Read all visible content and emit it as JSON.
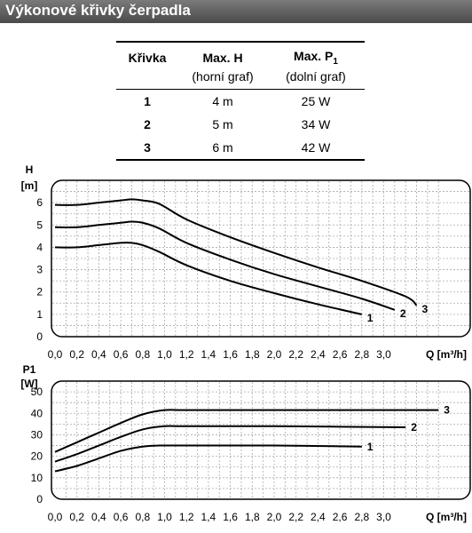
{
  "title": "Výkonové křivky čerpadla",
  "spec_table": {
    "headers": [
      "Křivka",
      "Max. H",
      "Max. P"
    ],
    "header_p_sub": "1",
    "subheaders": [
      "",
      "(horní graf)",
      "(dolní graf)"
    ],
    "rows": [
      {
        "curve": "1",
        "h": "4 m",
        "p": "25 W"
      },
      {
        "curve": "2",
        "h": "5 m",
        "p": "34 W"
      },
      {
        "curve": "3",
        "h": "6 m",
        "p": "42 W"
      }
    ]
  },
  "chart_data": [
    {
      "type": "line",
      "ylabel": "H",
      "yunit": "[m]",
      "xlabel": "Q [m³/h]",
      "xlim": [
        0,
        3.6
      ],
      "ylim": [
        0,
        7
      ],
      "xticks": [
        "0,0",
        "0,2",
        "0,4",
        "0,6",
        "0,8",
        "1,0",
        "1,2",
        "1,4",
        "1,6",
        "1,8",
        "2,0",
        "2,2",
        "2,4",
        "2,6",
        "2,8",
        "3,0"
      ],
      "yticks": [
        "0",
        "1",
        "2",
        "3",
        "4",
        "5",
        "6"
      ],
      "grid": true,
      "series": [
        {
          "name": "1",
          "x": [
            0,
            0.2,
            0.4,
            0.6,
            0.7,
            0.8,
            0.95,
            1.2,
            1.6,
            2.0,
            2.4,
            2.8
          ],
          "y": [
            4.0,
            4.0,
            4.1,
            4.2,
            4.2,
            4.1,
            3.8,
            3.2,
            2.5,
            1.95,
            1.45,
            1.0
          ]
        },
        {
          "name": "2",
          "x": [
            0,
            0.2,
            0.4,
            0.6,
            0.7,
            0.8,
            0.95,
            1.2,
            1.6,
            2.0,
            2.4,
            2.8,
            3.1
          ],
          "y": [
            4.9,
            4.9,
            5.0,
            5.1,
            5.15,
            5.1,
            4.85,
            4.2,
            3.45,
            2.8,
            2.25,
            1.7,
            1.2
          ]
        },
        {
          "name": "3",
          "x": [
            0,
            0.2,
            0.4,
            0.6,
            0.7,
            0.8,
            0.95,
            1.2,
            1.6,
            2.0,
            2.4,
            2.8,
            3.2,
            3.3
          ],
          "y": [
            5.9,
            5.9,
            6.0,
            6.1,
            6.15,
            6.1,
            5.95,
            5.25,
            4.45,
            3.75,
            3.1,
            2.5,
            1.8,
            1.4
          ]
        }
      ]
    },
    {
      "type": "line",
      "ylabel": "P1",
      "yunit": "[W]",
      "xlabel": "Q [m³/h]",
      "xlim": [
        0,
        3.6
      ],
      "ylim": [
        0,
        55
      ],
      "xticks": [
        "0,0",
        "0,2",
        "0,4",
        "0,6",
        "0,8",
        "1,0",
        "1,2",
        "1,4",
        "1,6",
        "1,8",
        "2,0",
        "2,2",
        "2,4",
        "2,6",
        "2,8",
        "3,0"
      ],
      "yticks": [
        "0",
        "10",
        "20",
        "30",
        "40",
        "50"
      ],
      "grid": true,
      "series": [
        {
          "name": "1",
          "x": [
            0,
            0.2,
            0.4,
            0.6,
            0.8,
            0.95,
            1.2,
            2.0,
            2.8
          ],
          "y": [
            13,
            15.5,
            19,
            22.5,
            24.5,
            25,
            25,
            25,
            24.5
          ]
        },
        {
          "name": "2",
          "x": [
            0,
            0.2,
            0.4,
            0.6,
            0.8,
            1.0,
            1.2,
            2.0,
            3.2
          ],
          "y": [
            17.5,
            21,
            25,
            29,
            32.5,
            34,
            34,
            34,
            33.5
          ]
        },
        {
          "name": "3",
          "x": [
            0,
            0.2,
            0.4,
            0.6,
            0.8,
            1.0,
            1.2,
            2.0,
            3.5
          ],
          "y": [
            22,
            26.5,
            31,
            35.5,
            39.5,
            41.5,
            41.5,
            41.5,
            41.5
          ]
        }
      ]
    }
  ]
}
